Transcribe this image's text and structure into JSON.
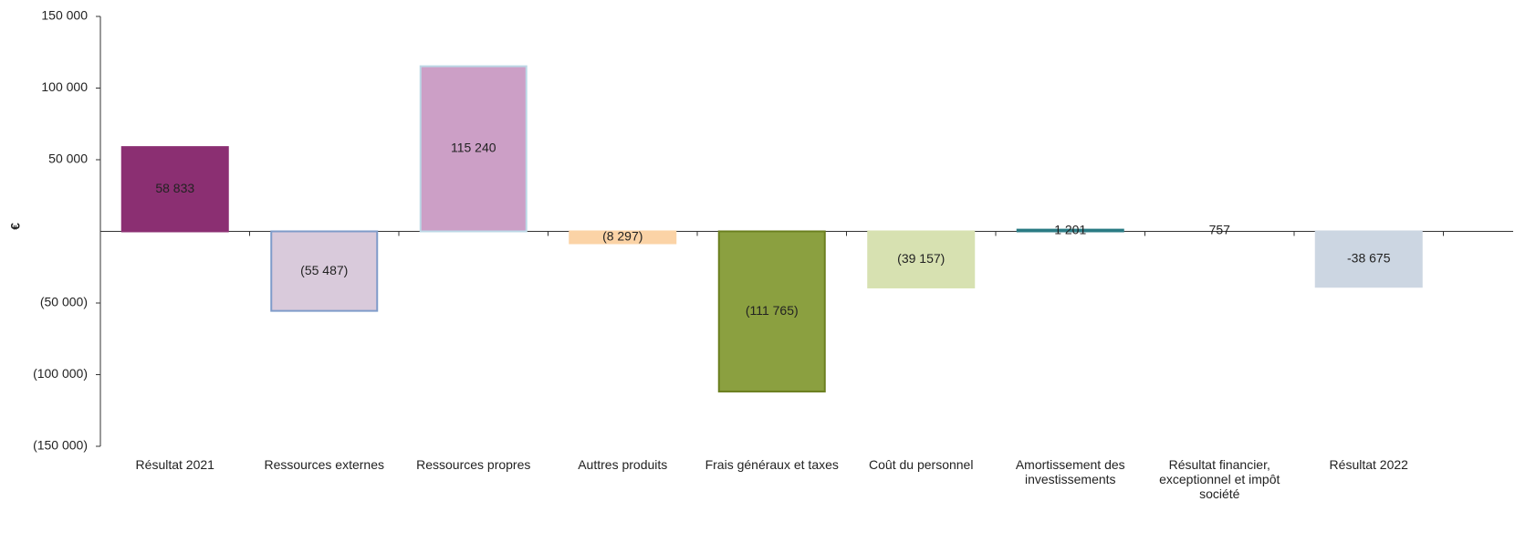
{
  "chart_data": {
    "type": "bar",
    "y_label": "€",
    "categories": [
      "Résultat 2021",
      "Ressources externes",
      "Ressources propres",
      "Auttres produits",
      "Frais généraux et taxes",
      "Coût du personnel",
      "Amortissement des investissements",
      "Résultat financier, exceptionnel et impôt société",
      "Résultat 2022"
    ],
    "values": [
      58833,
      -55487,
      115240,
      -8297,
      -111765,
      -39157,
      1201,
      757,
      -38675
    ],
    "value_labels": [
      "58 833",
      "(55 487)",
      "115 240",
      "(8 297)",
      "(111 765)",
      "(39 157)",
      "1 201",
      "757",
      "-38 675"
    ],
    "colors": [
      "#8b2f72",
      "#d9cadb",
      "#cc9fc6",
      "#fbd3a6",
      "#8ba040",
      "#d7e1b1",
      "#2a7b84",
      "none",
      "#ccd6e2"
    ],
    "edgecolors": [
      "#8b2f72",
      "#7f9bc9",
      "#bcd8e6",
      "#fbd3a6",
      "#6b7f1f",
      "#d7e1b1",
      "#2a7b84",
      "none",
      "#ccd6e2"
    ],
    "ylim": [
      -150000,
      150000
    ],
    "yticks": [
      {
        "value": 150000,
        "label": "150 000"
      },
      {
        "value": 100000,
        "label": "100 000"
      },
      {
        "value": 50000,
        "label": "50 000"
      },
      {
        "value": -50000,
        "label": "(50 000)"
      },
      {
        "value": -100000,
        "label": "(100 000)"
      },
      {
        "value": -150000,
        "label": "(150 000)"
      }
    ],
    "grid": false
  }
}
